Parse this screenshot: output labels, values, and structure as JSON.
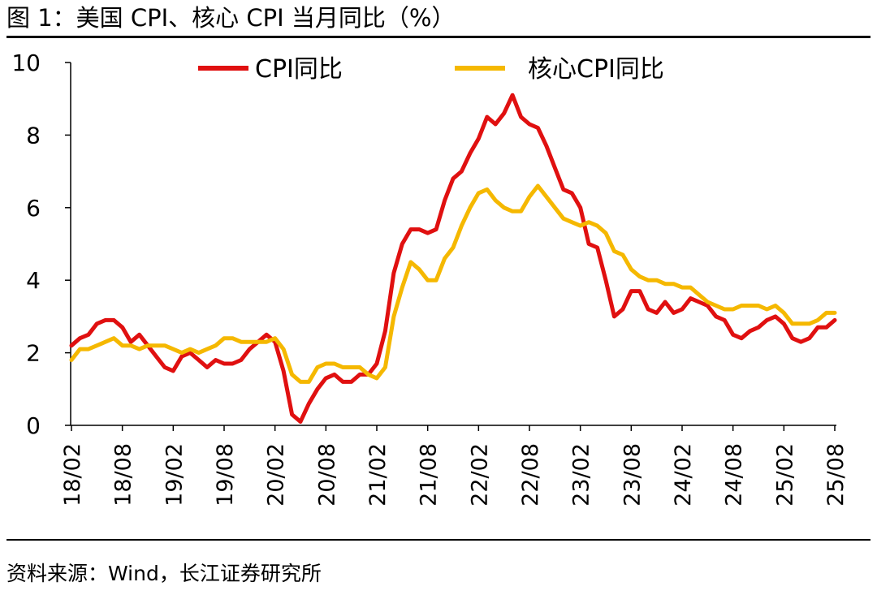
{
  "figure": {
    "title": "图 1：美国 CPI、核心 CPI 当月同比（%）",
    "source": "资料来源：Wind，长江证券研究所"
  },
  "chart_data": {
    "type": "line",
    "title": "美国 CPI、核心 CPI 当月同比（%）",
    "xlabel": "",
    "ylabel": "%",
    "ylim": [
      0,
      10
    ],
    "yticks": [
      0,
      2,
      4,
      6,
      8,
      10
    ],
    "xticks": [
      "18/02",
      "18/08",
      "19/02",
      "19/08",
      "20/02",
      "20/08",
      "21/02",
      "21/08",
      "22/02",
      "22/08",
      "23/02",
      "23/08",
      "24/02",
      "24/08",
      "25/02",
      "25/08"
    ],
    "legend_position": "top",
    "series": [
      {
        "name": "CPI同比",
        "color": "#e01010",
        "values": [
          2.2,
          2.4,
          2.5,
          2.8,
          2.9,
          2.9,
          2.7,
          2.3,
          2.5,
          2.2,
          1.9,
          1.6,
          1.5,
          1.9,
          2.0,
          1.8,
          1.6,
          1.8,
          1.7,
          1.7,
          1.8,
          2.1,
          2.3,
          2.5,
          2.3,
          1.5,
          0.3,
          0.1,
          0.6,
          1.0,
          1.3,
          1.4,
          1.2,
          1.2,
          1.4,
          1.4,
          1.7,
          2.6,
          4.2,
          5.0,
          5.4,
          5.4,
          5.3,
          5.4,
          6.2,
          6.8,
          7.0,
          7.5,
          7.9,
          8.5,
          8.3,
          8.6,
          9.1,
          8.5,
          8.3,
          8.2,
          7.7,
          7.1,
          6.5,
          6.4,
          6.0,
          5.0,
          4.9,
          4.0,
          3.0,
          3.2,
          3.7,
          3.7,
          3.2,
          3.1,
          3.4,
          3.1,
          3.2,
          3.5,
          3.4,
          3.3,
          3.0,
          2.9,
          2.5,
          2.4,
          2.6,
          2.7,
          2.9,
          3.0,
          2.8,
          2.4,
          2.3,
          2.4,
          2.7,
          2.7,
          2.9
        ]
      },
      {
        "name": "核心CPI同比",
        "color": "#f5b800",
        "values": [
          1.8,
          2.1,
          2.1,
          2.2,
          2.3,
          2.4,
          2.2,
          2.2,
          2.1,
          2.2,
          2.2,
          2.2,
          2.1,
          2.0,
          2.1,
          2.0,
          2.1,
          2.2,
          2.4,
          2.4,
          2.3,
          2.3,
          2.3,
          2.3,
          2.4,
          2.1,
          1.4,
          1.2,
          1.2,
          1.6,
          1.7,
          1.7,
          1.6,
          1.6,
          1.6,
          1.4,
          1.3,
          1.6,
          3.0,
          3.8,
          4.5,
          4.3,
          4.0,
          4.0,
          4.6,
          4.9,
          5.5,
          6.0,
          6.4,
          6.5,
          6.2,
          6.0,
          5.9,
          5.9,
          6.3,
          6.6,
          6.3,
          6.0,
          5.7,
          5.6,
          5.5,
          5.6,
          5.5,
          5.3,
          4.8,
          4.7,
          4.3,
          4.1,
          4.0,
          4.0,
          3.9,
          3.9,
          3.8,
          3.8,
          3.6,
          3.4,
          3.3,
          3.2,
          3.2,
          3.3,
          3.3,
          3.3,
          3.2,
          3.3,
          3.1,
          2.8,
          2.8,
          2.8,
          2.9,
          3.1,
          3.1
        ]
      }
    ]
  }
}
